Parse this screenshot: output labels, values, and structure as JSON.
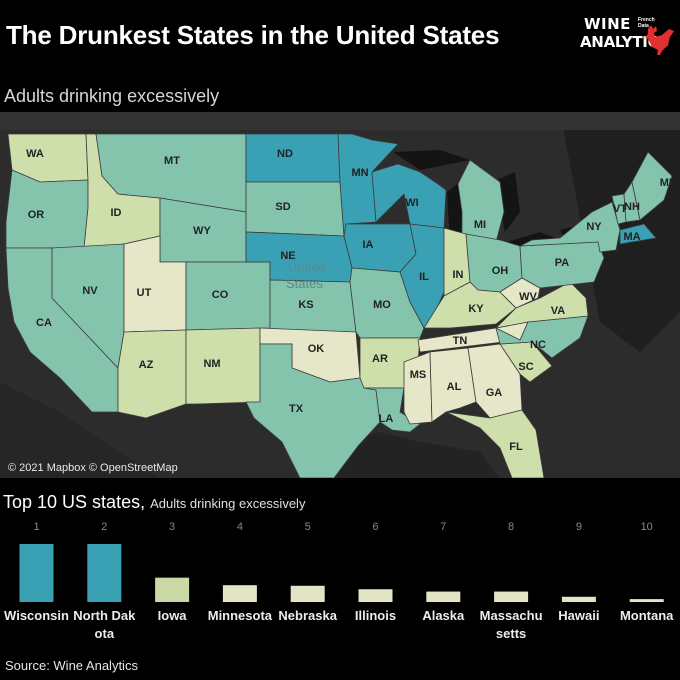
{
  "header": {
    "title": "The Drunkest States in the United States",
    "subtitle": "Adults drinking excessively",
    "logo_line1": "WINE",
    "logo_line2": "ANALYTICS",
    "logo_small_line1": "French",
    "logo_small_line2": "Data"
  },
  "map": {
    "credit": "© 2021 Mapbox © OpenStreetMap",
    "colors": {
      "very_high": "#3aa1b5",
      "high": "#84c4ac",
      "medium": "#aed1a6",
      "low": "#cfdfac",
      "very_low": "#e6e6c8",
      "background": "#2a2a2a"
    },
    "country_label": "United States",
    "states": [
      {
        "abbr": "WA",
        "level": "low"
      },
      {
        "abbr": "OR",
        "level": "high"
      },
      {
        "abbr": "CA",
        "level": "high"
      },
      {
        "abbr": "ID",
        "level": "low"
      },
      {
        "abbr": "NV",
        "level": "high"
      },
      {
        "abbr": "MT",
        "level": "high"
      },
      {
        "abbr": "WY",
        "level": "high"
      },
      {
        "abbr": "UT",
        "level": "very_low"
      },
      {
        "abbr": "AZ",
        "level": "low"
      },
      {
        "abbr": "CO",
        "level": "high"
      },
      {
        "abbr": "NM",
        "level": "low"
      },
      {
        "abbr": "ND",
        "level": "very_high"
      },
      {
        "abbr": "SD",
        "level": "high"
      },
      {
        "abbr": "NE",
        "level": "very_high"
      },
      {
        "abbr": "KS",
        "level": "high"
      },
      {
        "abbr": "OK",
        "level": "very_low"
      },
      {
        "abbr": "TX",
        "level": "high"
      },
      {
        "abbr": "MN",
        "level": "very_high"
      },
      {
        "abbr": "IA",
        "level": "very_high"
      },
      {
        "abbr": "MO",
        "level": "high"
      },
      {
        "abbr": "AR",
        "level": "low"
      },
      {
        "abbr": "LA",
        "level": "high"
      },
      {
        "abbr": "WI",
        "level": "very_high"
      },
      {
        "abbr": "IL",
        "level": "very_high"
      },
      {
        "abbr": "MI",
        "level": "high"
      },
      {
        "abbr": "IN",
        "level": "low"
      },
      {
        "abbr": "OH",
        "level": "high"
      },
      {
        "abbr": "KY",
        "level": "low"
      },
      {
        "abbr": "TN",
        "level": "very_low"
      },
      {
        "abbr": "MS",
        "level": "very_low"
      },
      {
        "abbr": "AL",
        "level": "very_low"
      },
      {
        "abbr": "GA",
        "level": "very_low"
      },
      {
        "abbr": "FL",
        "level": "low"
      },
      {
        "abbr": "SC",
        "level": "low"
      },
      {
        "abbr": "NC",
        "level": "high"
      },
      {
        "abbr": "VA",
        "level": "low"
      },
      {
        "abbr": "WV",
        "level": "very_low"
      },
      {
        "abbr": "PA",
        "level": "high"
      },
      {
        "abbr": "NY",
        "level": "high"
      },
      {
        "abbr": "VT",
        "level": "high"
      },
      {
        "abbr": "NH",
        "level": "high"
      },
      {
        "abbr": "ME",
        "level": "high"
      },
      {
        "abbr": "MA",
        "level": "very_high"
      }
    ]
  },
  "chart_data": {
    "type": "bar",
    "title": "Top 10 US states",
    "subtitle": "Adults drinking excessively",
    "ranks": [
      "1",
      "2",
      "3",
      "4",
      "5",
      "6",
      "7",
      "8",
      "9",
      "10"
    ],
    "categories": [
      "Wisconsin",
      "North Dakota",
      "Iowa",
      "Minnesota",
      "Nebraska",
      "Illinois",
      "Alaska",
      "Massachusetts",
      "Hawaii",
      "Montana"
    ],
    "values": [
      1.0,
      1.0,
      0.42,
      0.29,
      0.28,
      0.22,
      0.18,
      0.18,
      0.09,
      0.05
    ],
    "colors": [
      "#3aa1b5",
      "#3aa1b5",
      "#cad9a5",
      "#e3e3c6",
      "#e3e3c6",
      "#e3e3c6",
      "#e3e3c6",
      "#e3e3c6",
      "#e3e3c6",
      "#e3e3c6"
    ],
    "grid": false
  },
  "footer": {
    "source": "Source: Wine Analytics"
  }
}
